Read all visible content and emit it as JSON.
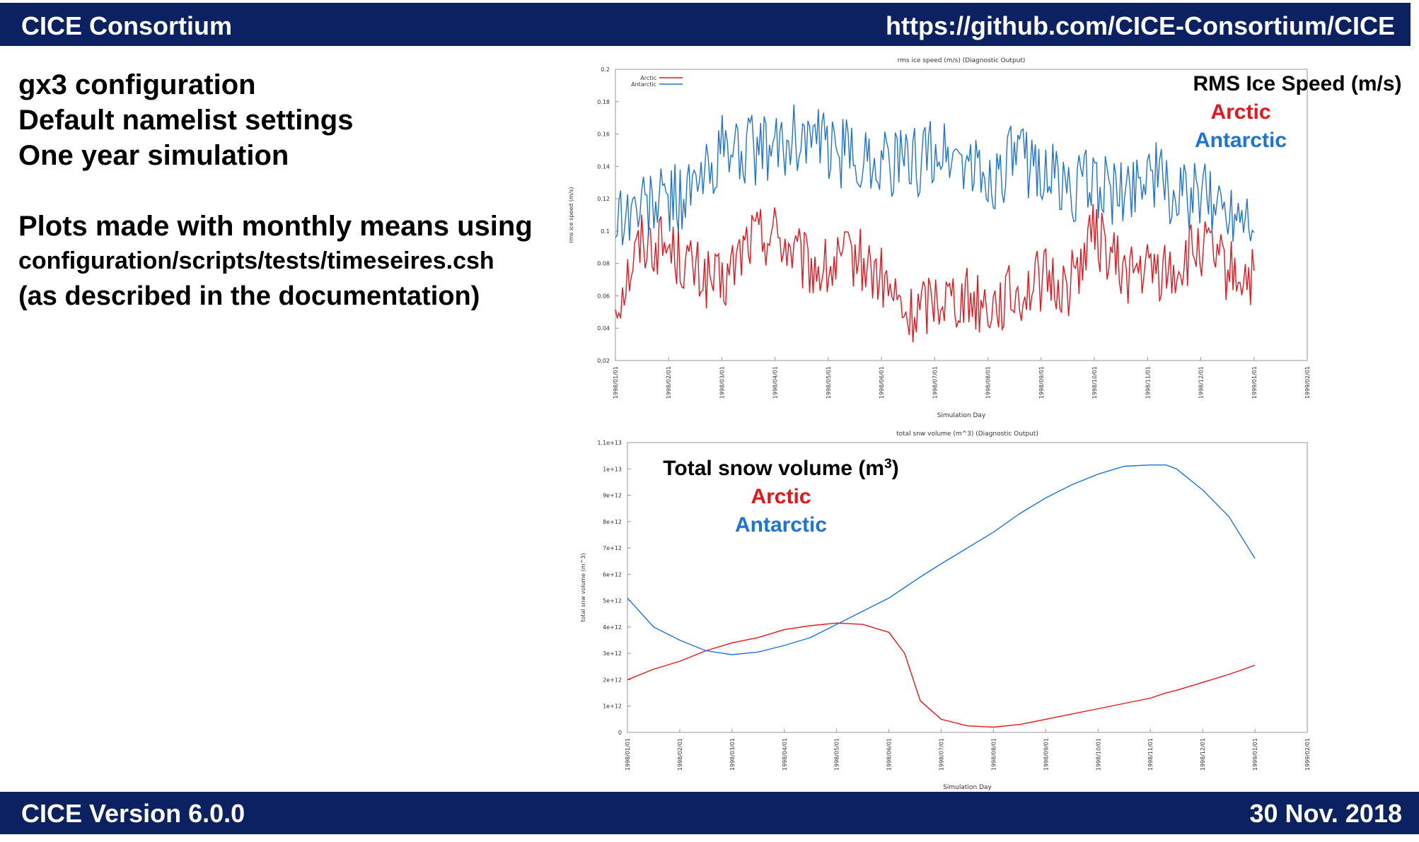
{
  "header": {
    "left": "CICE Consortium",
    "right": "https://github.com/CICE-Consortium/CICE"
  },
  "footer": {
    "left": "CICE Version 6.0.0",
    "right": "30 Nov. 2018"
  },
  "notes": {
    "line1": "gx3 configuration",
    "line2": "Default namelist settings",
    "line3": "One year simulation",
    "line4": "Plots made with monthly means using",
    "line5": "configuration/scripts/tests/timeseires.csh",
    "line6": "(as described in the documentation)"
  },
  "colors": {
    "arctic": "#e8141c",
    "antarctic": "#1e73d6",
    "bar": "#0b2161"
  },
  "chart_data": [
    {
      "type": "line",
      "title": "rms ice speed    (m/s) (Diagnostic Output)",
      "xlabel": "Simulation Day",
      "ylabel": "rms ice speed    (m/s)",
      "ylim": [
        0.02,
        0.2
      ],
      "yticks": [
        "0.02",
        "0.04",
        "0.06",
        "0.08",
        "0.1",
        "0.12",
        "0.14",
        "0.16",
        "0.18",
        "0.2"
      ],
      "xticks": [
        "1998/01/01",
        "1998/02/01",
        "1998/03/01",
        "1998/04/01",
        "1998/05/01",
        "1998/06/01",
        "1998/07/01",
        "1998/08/01",
        "1998/09/01",
        "1998/10/01",
        "1998/11/01",
        "1998/12/01",
        "1999/01/01",
        "1999/02/01"
      ],
      "legend": [
        "Arctic",
        "Antarctic"
      ],
      "overlay": {
        "title": "RMS Ice Speed (m/s)",
        "arctic": "Arctic",
        "antarctic": "Antarctic"
      },
      "x_months": [
        0,
        0.5,
        1,
        1.5,
        2,
        2.5,
        3,
        3.5,
        4,
        4.5,
        5,
        5.5,
        6,
        6.5,
        7,
        7.5,
        8,
        8.5,
        9,
        9.5,
        10,
        10.5,
        11,
        11.5,
        12
      ],
      "series": [
        {
          "name": "Arctic",
          "values": [
            0.055,
            0.095,
            0.09,
            0.075,
            0.065,
            0.095,
            0.1,
            0.08,
            0.075,
            0.085,
            0.07,
            0.045,
            0.06,
            0.06,
            0.055,
            0.06,
            0.07,
            0.065,
            0.1,
            0.075,
            0.075,
            0.075,
            0.09,
            0.075,
            0.07
          ]
        },
        {
          "name": "Antarctic",
          "values": [
            0.11,
            0.115,
            0.12,
            0.125,
            0.15,
            0.15,
            0.15,
            0.16,
            0.15,
            0.145,
            0.145,
            0.14,
            0.15,
            0.145,
            0.13,
            0.145,
            0.14,
            0.125,
            0.13,
            0.12,
            0.14,
            0.12,
            0.12,
            0.115,
            0.115
          ]
        }
      ]
    },
    {
      "type": "line",
      "title": "total snw volume (m^3) (Diagnostic Output)",
      "xlabel": "Simulation Day",
      "ylabel": "total snw volume (m^3)",
      "ylim": [
        0,
        11000000000000.0
      ],
      "yticks": [
        "0",
        "1e+12",
        "2e+12",
        "3e+12",
        "4e+12",
        "5e+12",
        "6e+12",
        "7e+12",
        "8e+12",
        "9e+12",
        "1e+13",
        "1.1e+13"
      ],
      "xticks": [
        "1998/01/01",
        "1998/02/01",
        "1998/03/01",
        "1998/04/01",
        "1998/05/01",
        "1998/06/01",
        "1998/07/01",
        "1998/08/01",
        "1998/09/01",
        "1998/10/01",
        "1998/11/01",
        "1998/12/01",
        "1999/01/01",
        "1999/02/01"
      ],
      "overlay": {
        "title": "Total snow volume (m",
        "sup": "3",
        "close": ")",
        "arctic": "Arctic",
        "antarctic": "Antarctic"
      },
      "x_months": [
        0,
        0.5,
        1,
        1.5,
        2,
        2.5,
        3,
        3.5,
        4,
        4.5,
        5,
        5.3,
        5.6,
        6,
        6.5,
        7,
        7.5,
        8,
        8.5,
        9,
        9.5,
        10,
        10.3,
        10.5,
        11,
        11.5,
        12
      ],
      "series": [
        {
          "name": "Arctic",
          "values": [
            2000000000000.0,
            2400000000000.0,
            2700000000000.0,
            3100000000000.0,
            3400000000000.0,
            3600000000000.0,
            3900000000000.0,
            4050000000000.0,
            4150000000000.0,
            4100000000000.0,
            3800000000000.0,
            3000000000000.0,
            1200000000000.0,
            500000000000.0,
            250000000000.0,
            200000000000.0,
            300000000000.0,
            500000000000.0,
            700000000000.0,
            900000000000.0,
            1100000000000.0,
            1300000000000.0,
            1500000000000.0,
            1600000000000.0,
            1900000000000.0,
            2200000000000.0,
            2550000000000.0
          ]
        },
        {
          "name": "Antarctic",
          "values": [
            5100000000000.0,
            4000000000000.0,
            3500000000000.0,
            3100000000000.0,
            2950000000000.0,
            3050000000000.0,
            3300000000000.0,
            3600000000000.0,
            4100000000000.0,
            4600000000000.0,
            5100000000000.0,
            5500000000000.0,
            5900000000000.0,
            6400000000000.0,
            7000000000000.0,
            7600000000000.0,
            8300000000000.0,
            8900000000000.0,
            9400000000000.0,
            9800000000000.0,
            10100000000000.0,
            10150000000000.0,
            10150000000000.0,
            10000000000000.0,
            9200000000000.0,
            8200000000000.0,
            6600000000000.0
          ]
        }
      ]
    }
  ]
}
